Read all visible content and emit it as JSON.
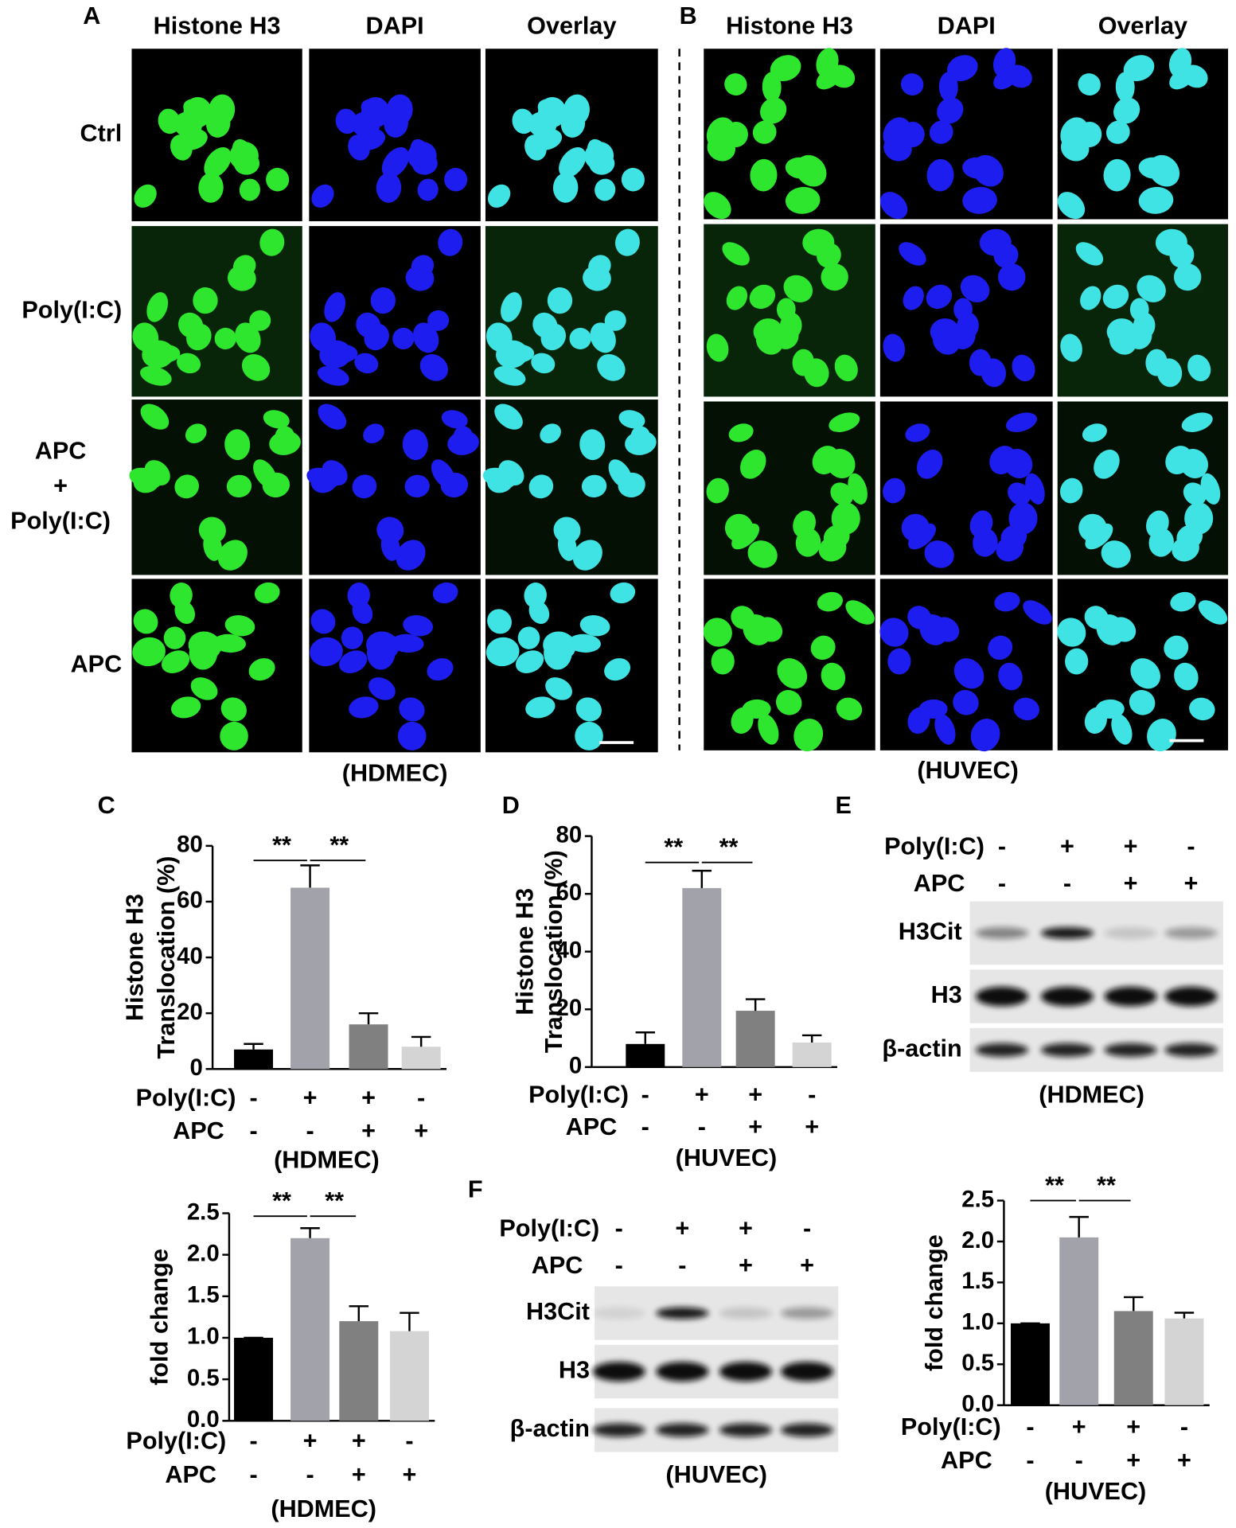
{
  "panel_letters": [
    "A",
    "B",
    "C",
    "D",
    "E",
    "F"
  ],
  "microscopy": [
    {
      "channels": [
        "Histone H3",
        "DAPI",
        "Overlay"
      ],
      "channel_colors": [
        "#1fb24a",
        "#1a1aff",
        "#000000"
      ],
      "conditions": [
        [
          "Ctrl"
        ],
        [
          "Poly(I:C)"
        ],
        [
          "APC",
          "+",
          "Poly(I:C)"
        ],
        [
          "APC"
        ]
      ],
      "cell_line": "(HDMEC)"
    },
    {
      "channels": [
        "Histone H3",
        "DAPI",
        "Overlay"
      ],
      "channel_colors": [
        "#1fb24a",
        "#1a1aff",
        "#000000"
      ],
      "cell_line": "(HUVEC)"
    }
  ],
  "blots": [
    {
      "treatments": [
        {
          "name": "Poly(I:C)",
          "signs": [
            "-",
            "+",
            "+",
            "-"
          ]
        },
        {
          "name": "APC",
          "signs": [
            "-",
            "-",
            "+",
            "+"
          ]
        }
      ],
      "rows": [
        "H3Cit",
        "H3",
        "β-actin"
      ],
      "cell_line": "(HDMEC)"
    },
    {
      "treatments": [
        {
          "name": "Poly(I:C)",
          "signs": [
            "-",
            "+",
            "+",
            "-"
          ]
        },
        {
          "name": "APC",
          "signs": [
            "-",
            "-",
            "+",
            "+"
          ]
        }
      ],
      "rows": [
        "H3Cit",
        "H3",
        "β-actin"
      ],
      "cell_line": "(HUVEC)"
    }
  ],
  "chart_data": [
    {
      "type": "bar",
      "ylabel": [
        "Histone H3",
        "Translocation (%)"
      ],
      "values": [
        7,
        65,
        16,
        8
      ],
      "errors": [
        2,
        8,
        4,
        3.5
      ],
      "colors": [
        "#000000",
        "#a2a2aa",
        "#808080",
        "#d4d4d4"
      ],
      "ylim": [
        0,
        80
      ],
      "yticks": [
        0,
        20,
        40,
        60,
        80
      ],
      "significance": [
        "**",
        "**"
      ],
      "treatments": [
        {
          "name": "Poly(I:C)",
          "signs": [
            "-",
            "+",
            "+",
            "-"
          ]
        },
        {
          "name": "APC",
          "signs": [
            "-",
            "-",
            "+",
            "+"
          ]
        }
      ],
      "cell_line": "(HDMEC)"
    },
    {
      "type": "bar",
      "ylabel": [
        "Histone H3",
        "Translocation (%)"
      ],
      "values": [
        8,
        62,
        19.5,
        8.5
      ],
      "errors": [
        4,
        6,
        4,
        2.5
      ],
      "colors": [
        "#000000",
        "#a2a2aa",
        "#808080",
        "#d4d4d4"
      ],
      "ylim": [
        0,
        80
      ],
      "yticks": [
        0,
        20,
        40,
        60,
        80
      ],
      "significance": [
        "**",
        "**"
      ],
      "treatments": [
        {
          "name": "Poly(I:C)",
          "signs": [
            "-",
            "+",
            "+",
            "-"
          ]
        },
        {
          "name": "APC",
          "signs": [
            "-",
            "-",
            "+",
            "+"
          ]
        }
      ],
      "cell_line": "(HUVEC)"
    },
    {
      "type": "bar",
      "ylabel": [
        "fold change"
      ],
      "values": [
        1.0,
        2.2,
        1.2,
        1.08
      ],
      "errors": [
        0,
        0.12,
        0.18,
        0.22
      ],
      "colors": [
        "#000000",
        "#a2a2aa",
        "#808080",
        "#d4d4d4"
      ],
      "ylim": [
        0,
        2.5
      ],
      "yticks": [
        {
          "value": 0,
          "label": "0.0"
        },
        0.5,
        {
          "value": 1,
          "label": "1.0"
        },
        1.5,
        {
          "value": 2,
          "label": "2.0"
        },
        2.5
      ],
      "significance": [
        "**",
        "**"
      ],
      "treatments": [
        {
          "name": "Poly(I:C)",
          "signs": [
            "-",
            "+",
            "+",
            "-"
          ]
        },
        {
          "name": "APC",
          "signs": [
            "-",
            "-",
            "+",
            "+"
          ]
        }
      ],
      "cell_line": "(HDMEC)"
    },
    {
      "type": "bar",
      "ylabel": [
        "fold change"
      ],
      "values": [
        1.0,
        2.05,
        1.15,
        1.06
      ],
      "errors": [
        0,
        0.25,
        0.17,
        0.07
      ],
      "colors": [
        "#000000",
        "#a2a2aa",
        "#808080",
        "#d4d4d4"
      ],
      "ylim": [
        0,
        2.5
      ],
      "yticks": [
        {
          "value": 0,
          "label": "0.0"
        },
        0.5,
        {
          "value": 1,
          "label": "1.0"
        },
        1.5,
        {
          "value": 2,
          "label": "2.0"
        },
        2.5
      ],
      "significance": [
        "**",
        "**"
      ],
      "treatments": [
        {
          "name": "Poly(I:C)",
          "signs": [
            "-",
            "+",
            "+",
            "-"
          ]
        },
        {
          "name": "APC",
          "signs": [
            "-",
            "-",
            "+",
            "+"
          ]
        }
      ],
      "cell_line": "(HUVEC)"
    }
  ]
}
